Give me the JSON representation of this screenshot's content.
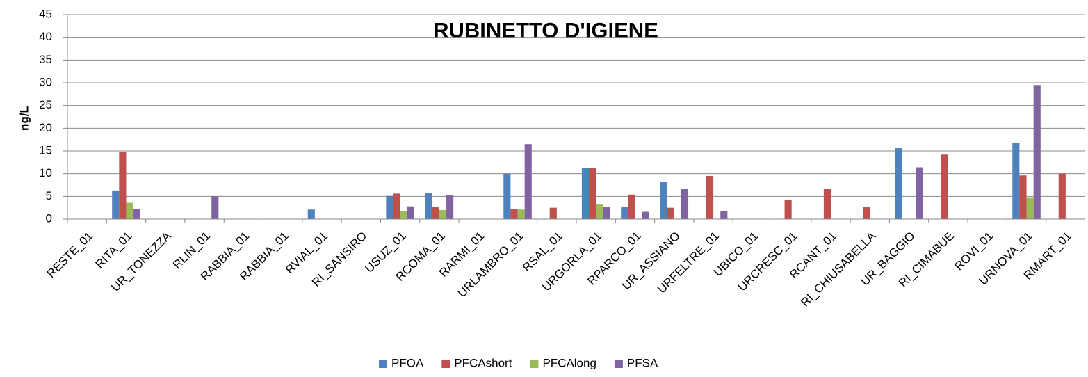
{
  "chart_data": {
    "type": "bar",
    "title": "RUBINETTO D'IGIENE",
    "y_label": "ng/L",
    "categories": [
      "RESTE_01",
      "RITA_01",
      "UR_TONEZZA",
      "RLIN_01",
      "RABBIA_01",
      "RABBIA_01",
      "RVIAL_01",
      "RI_SANSIRO",
      "USUZ_01",
      "RCOMA_01",
      "RARMI_01",
      "URLAMBRO_01",
      "RSAL_01",
      "URGORLA_01",
      "RPARCO_01",
      "UR_ASSIANO",
      "URFELTRE_01",
      "UBICO_01",
      "URCRESC_01",
      "RCANT_01",
      "RI_CHIUSABELLA",
      "UR_BAGGIO",
      "RI_CIMABUE",
      "ROVI_01",
      "URNOVA_01",
      "RMART_01"
    ],
    "series": [
      {
        "name": "PFOA",
        "color": "#4f81bd",
        "values": [
          null,
          6.3,
          null,
          null,
          null,
          null,
          2.1,
          null,
          5.1,
          5.8,
          null,
          10.0,
          null,
          11.2,
          2.6,
          8.1,
          null,
          null,
          null,
          null,
          null,
          15.6,
          null,
          null,
          16.8,
          null
        ]
      },
      {
        "name": "PFCAshort",
        "color": "#c0504d",
        "values": [
          null,
          14.8,
          null,
          null,
          null,
          null,
          null,
          null,
          5.6,
          2.6,
          null,
          2.2,
          2.5,
          11.2,
          5.4,
          2.5,
          9.5,
          null,
          4.2,
          6.7,
          2.6,
          null,
          14.2,
          null,
          9.6,
          10.0
        ]
      },
      {
        "name": "PFCAlong",
        "color": "#9bbb59",
        "values": [
          null,
          3.6,
          null,
          null,
          null,
          null,
          null,
          null,
          1.7,
          2.0,
          null,
          2.1,
          null,
          3.2,
          null,
          null,
          null,
          null,
          null,
          null,
          null,
          null,
          null,
          null,
          4.8,
          null
        ]
      },
      {
        "name": "PFSA",
        "color": "#8064a2",
        "values": [
          null,
          2.3,
          null,
          5.0,
          null,
          null,
          null,
          null,
          2.8,
          5.3,
          null,
          16.5,
          null,
          2.6,
          1.6,
          6.7,
          1.7,
          null,
          null,
          null,
          null,
          11.4,
          null,
          null,
          29.5,
          null
        ]
      }
    ],
    "ylim": [
      0,
      45
    ],
    "yticks": [
      0,
      5,
      10,
      15,
      20,
      25,
      30,
      35,
      40,
      45
    ],
    "grid": true,
    "legend": "bottom"
  }
}
